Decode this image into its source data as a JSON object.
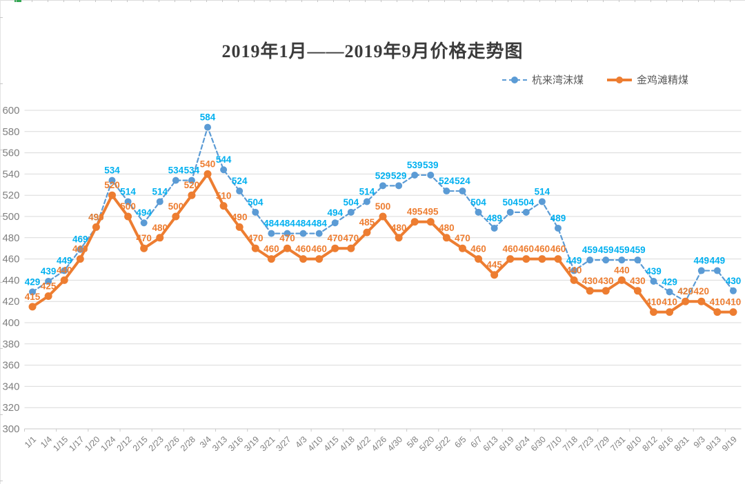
{
  "title": "2019年1月——2019年9月价格走势图",
  "legend": {
    "items": [
      {
        "label": "杭来湾沫煤",
        "color": "#5b9bd5",
        "line_style": "dashed"
      },
      {
        "label": "金鸡滩精煤",
        "color": "#ed7d31",
        "line_style": "solid"
      }
    ]
  },
  "axes": {
    "y_tick_labels": [
      "600",
      "580",
      "560",
      "540",
      "520",
      "500",
      "480",
      "460",
      "440",
      "420",
      "400",
      "380",
      "360",
      "340",
      "320",
      "300"
    ]
  },
  "chart_data": {
    "type": "line",
    "title": "2019年1月——2019年9月价格走势图",
    "categories": [
      "1/1",
      "1/4",
      "1/15",
      "1/17",
      "1/20",
      "1/24",
      "2/12",
      "2/15",
      "2/23",
      "2/26",
      "2/28",
      "3/4",
      "3/13",
      "3/16",
      "3/19",
      "3/21",
      "3/27",
      "4/3",
      "4/10",
      "4/15",
      "4/18",
      "4/22",
      "4/26",
      "4/30",
      "5/8",
      "5/20",
      "5/22",
      "6/5",
      "6/7",
      "6/13",
      "6/19",
      "6/24",
      "6/30",
      "7/10",
      "7/18",
      "7/23",
      "7/29",
      "7/31",
      "8/10",
      "8/12",
      "8/16",
      "8/31",
      "9/3",
      "9/13",
      "9/19"
    ],
    "series": [
      {
        "name": "杭来湾沫煤",
        "line_style": "dashed",
        "line_color": "#5b9bd5",
        "marker": "circle",
        "label_color": "#00b0f0",
        "values": [
          429,
          439,
          449,
          469,
          490,
          534,
          514,
          494,
          514,
          534,
          534,
          584,
          544,
          524,
          504,
          484,
          484,
          484,
          484,
          494,
          504,
          514,
          529,
          529,
          539,
          539,
          524,
          524,
          504,
          489,
          504,
          504,
          514,
          489,
          449,
          459,
          459,
          459,
          459,
          439,
          429,
          420,
          449,
          449,
          430
        ]
      },
      {
        "name": "金鸡滩精煤",
        "line_style": "solid",
        "line_color": "#ed7d31",
        "marker": "circle",
        "label_color": "#ed7d31",
        "values": [
          415,
          425,
          440,
          460,
          490,
          520,
          500,
          470,
          480,
          500,
          520,
          540,
          510,
          490,
          470,
          460,
          470,
          460,
          460,
          470,
          470,
          485,
          500,
          480,
          495,
          495,
          480,
          470,
          460,
          445,
          460,
          460,
          460,
          460,
          440,
          430,
          430,
          440,
          430,
          410,
          410,
          420,
          420,
          410,
          410
        ]
      }
    ],
    "ylim": [
      300,
      600
    ],
    "ytick_step": 20,
    "grid": true,
    "data_labels": true,
    "legend_position": "top-right",
    "gridline_color": "#d9d9d9",
    "axis_line_color": "#c9c9c9",
    "axis_label_color": "#7f7f7f",
    "xlabel": "",
    "ylabel": ""
  }
}
